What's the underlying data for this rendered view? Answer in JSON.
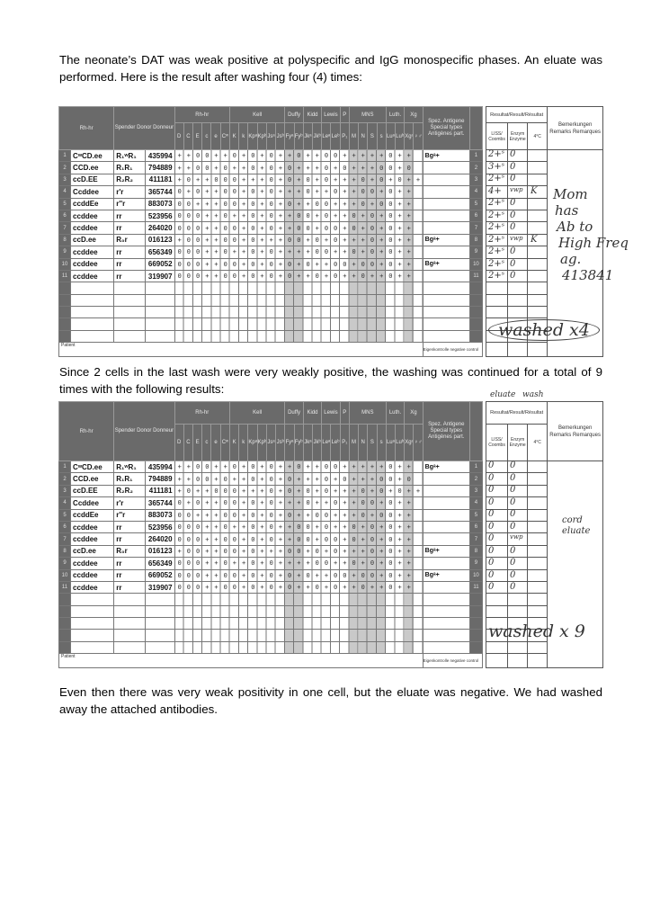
{
  "paragraphs": [
    "The neonate’s DAT was weak positive at polyspecific and IgG monospecific phases.  An eluate was performed.  Here is the result after washing four (4) times:",
    "Since 2 cells in the last wash were very weakly positive, the washing was continued for a total of 9 times with the following results:",
    "Even then there was very weak positivity in one cell, but the eluate was negative.  We had washed away the attached antibodies."
  ],
  "antigram_header": {
    "rh_hr": "Rh-hr",
    "donor": "Spender Donor Donneur",
    "groups": [
      "Rh-hr",
      "Kell",
      "Duffy",
      "Kidd",
      "Lewis",
      "P",
      "MNS",
      "Luth.",
      "Xg"
    ],
    "antigens": [
      "D",
      "C",
      "E",
      "c",
      "e",
      "Cʷ",
      "K",
      "k",
      "Kpᵃ",
      "Kpᵇ",
      "Jsᵃ",
      "Jsᵇ",
      "Fyᵃ",
      "Fyᵇ",
      "Jkᵃ",
      "Jkᵇ",
      "Leᵃ",
      "Leᵇ",
      "P₁",
      "M",
      "N",
      "S",
      "s",
      "Luᵃ",
      "Luᵇ",
      "Xgᵃ",
      "♀♂"
    ],
    "special": "Spez. Antigene Special types Antigènes part.",
    "result": "Resultat/Result/Résultat",
    "result_cols": [
      "LISS/ Coombs",
      "Enzym Enzyme",
      "4°C"
    ],
    "remarks": "Bemerkungen Remarks Remarques",
    "patient": "Patient",
    "auto_control": "Eigenkontrolle negative control"
  },
  "cells": [
    {
      "no": "1",
      "rh": "CʷCD.ee",
      "geno": "R₁ʷR₁",
      "donor": "435994",
      "vals": "++00++0+0+0++0++00+++++0++",
      "spec": "Bgᵃ+"
    },
    {
      "no": "2",
      "rh": "CCD.ee",
      "geno": "R₁R₁",
      "donor": "794889",
      "vals": "++00+0++0+0+0+++0+0+++00+0",
      "spec": ""
    },
    {
      "no": "3",
      "rh": "ccD.EE",
      "geno": "R₂R₂",
      "donor": "411181",
      "vals": "+0++000+++0+0+0+0+++0+0+0++",
      "spec": ""
    },
    {
      "no": "4",
      "rh": "Ccddee",
      "geno": "r'r",
      "donor": "365744",
      "vals": "0+0++00+0+0+++0++0++00+0++",
      "spec": ""
    },
    {
      "no": "5",
      "rh": "ccddEe",
      "geno": "r''r",
      "donor": "883073",
      "vals": "00+++00+0+0+0++00+++0+00++",
      "spec": ""
    },
    {
      "no": "6",
      "rh": "ccddee",
      "geno": "rr",
      "donor": "523956",
      "vals": "000++0++0+0++00+0++0+0+0++",
      "spec": ""
    },
    {
      "no": "7",
      "rh": "ccddee",
      "geno": "rr",
      "donor": "264020",
      "vals": "000++00+0+0++00+00+0+0+0++",
      "spec": ""
    },
    {
      "no": "8",
      "rh": "ccD.ee",
      "geno": "R₀r",
      "donor": "016123",
      "vals": "+00++00+0+++00+0+0+++0+0++",
      "spec": "Bgᵃ+"
    },
    {
      "no": "9",
      "rh": "ccddee",
      "geno": "rr",
      "donor": "656349",
      "vals": "000++0++0+0++++00++0+0+0++",
      "spec": ""
    },
    {
      "no": "10",
      "rh": "ccddee",
      "geno": "rr",
      "donor": "669052",
      "vals": "000++00+0+0+0+0++00+00+0++",
      "spec": "Bgᵃ+"
    },
    {
      "no": "11",
      "rh": "ccddee",
      "geno": "rr",
      "donor": "319907",
      "vals": "000++00+0+0+0++0+0++0++0++",
      "spec": ""
    }
  ],
  "panel1": {
    "results_liss": [
      "2+ˢ",
      "3+ˢ",
      "2+ˢ",
      "4+",
      "2+ˢ",
      "2+ˢ",
      "2+ˢ",
      "2+ˢ",
      "2+ˢ",
      "2+ˢ",
      "2+ˢ"
    ],
    "results_enzyme": [
      "0",
      "0",
      "0",
      "vwp",
      "0",
      "0",
      "0",
      "vwp",
      "0",
      "0",
      "0"
    ],
    "results_4c": [
      "",
      "",
      "",
      "K",
      "",
      "",
      "",
      "K",
      "",
      "",
      ""
    ],
    "remark_note": [
      "Mom",
      "has",
      "Ab to",
      "High Freq",
      "ag.",
      "413841"
    ],
    "wash_note": "washed x4"
  },
  "panel2": {
    "header_note": [
      "eluate",
      "wash"
    ],
    "results_liss": [
      "0",
      "0",
      "0",
      "0",
      "0",
      "0",
      "0",
      "0",
      "0",
      "0",
      "0"
    ],
    "results_enzyme": [
      "0",
      "0",
      "0",
      "0",
      "0",
      "0",
      "vwp",
      "0",
      "0",
      "0",
      "0"
    ],
    "results_4c": [
      "",
      "",
      "",
      "",
      "",
      "",
      "",
      "",
      "",
      "",
      ""
    ],
    "remark_note": [
      "cord",
      "eluate"
    ],
    "wash_note": "washed x 9"
  }
}
